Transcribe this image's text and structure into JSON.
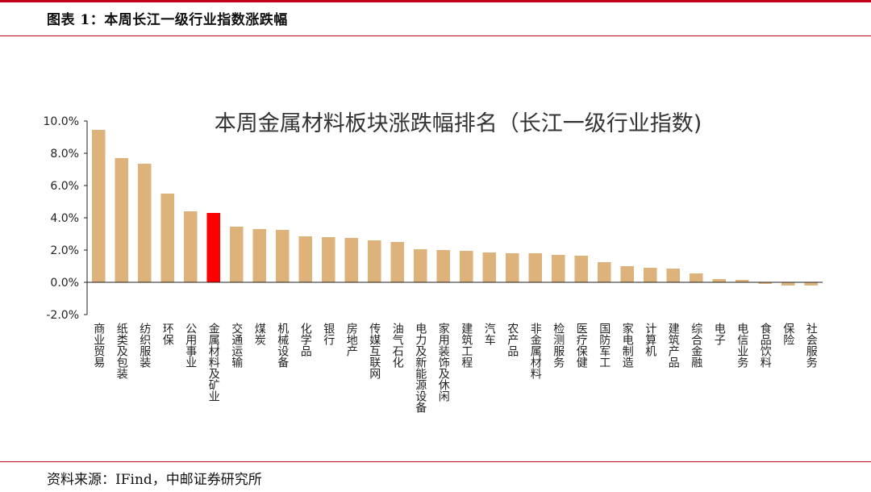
{
  "header": {
    "title": "图表 1：本周长江一级行业指数涨跌幅"
  },
  "footer": {
    "source": "资料来源：IFind，中邮证券研究所"
  },
  "colors": {
    "rule": "#c0001a",
    "bar": "#ddb27b",
    "highlight_bar": "#ff0000",
    "axis": "#222222"
  },
  "chart_data": {
    "type": "bar",
    "title": "本周金属材料板块涨跌幅排名（长江一级行业指数)",
    "xlabel": "",
    "ylabel": "",
    "ylim": [
      -2.0,
      10.0
    ],
    "yticks": [
      "10.0%",
      "8.0%",
      "6.0%",
      "4.0%",
      "2.0%",
      "0.0%",
      "-2.0%"
    ],
    "ytick_values": [
      10,
      8,
      6,
      4,
      2,
      0,
      -2
    ],
    "unit": "%",
    "grid": false,
    "legend": "none",
    "highlight_category": "金属材料及矿业",
    "categories": [
      "商业贸易",
      "纸类及包装",
      "纺织服装",
      "环保",
      "公用事业",
      "金属材料及矿业",
      "交通运输",
      "煤炭",
      "机械设备",
      "化学品",
      "银行",
      "房地产",
      "传媒互联网",
      "油气石化",
      "电力及新能源设备",
      "家用装饰及休闲",
      "建筑工程",
      "汽车",
      "农产品",
      "非金属材料",
      "检测服务",
      "医疗保健",
      "国防军工",
      "家电制造",
      "计算机",
      "建筑产品",
      "综合金融",
      "电子",
      "电信业务",
      "食品饮料",
      "保险",
      "社会服务"
    ],
    "values": [
      9.45,
      7.7,
      7.35,
      5.5,
      4.4,
      4.3,
      3.45,
      3.3,
      3.25,
      2.85,
      2.8,
      2.75,
      2.6,
      2.5,
      2.05,
      2.0,
      1.95,
      1.85,
      1.8,
      1.8,
      1.7,
      1.65,
      1.25,
      1.0,
      0.9,
      0.85,
      0.55,
      0.2,
      0.15,
      -0.1,
      -0.2,
      -0.2
    ]
  }
}
